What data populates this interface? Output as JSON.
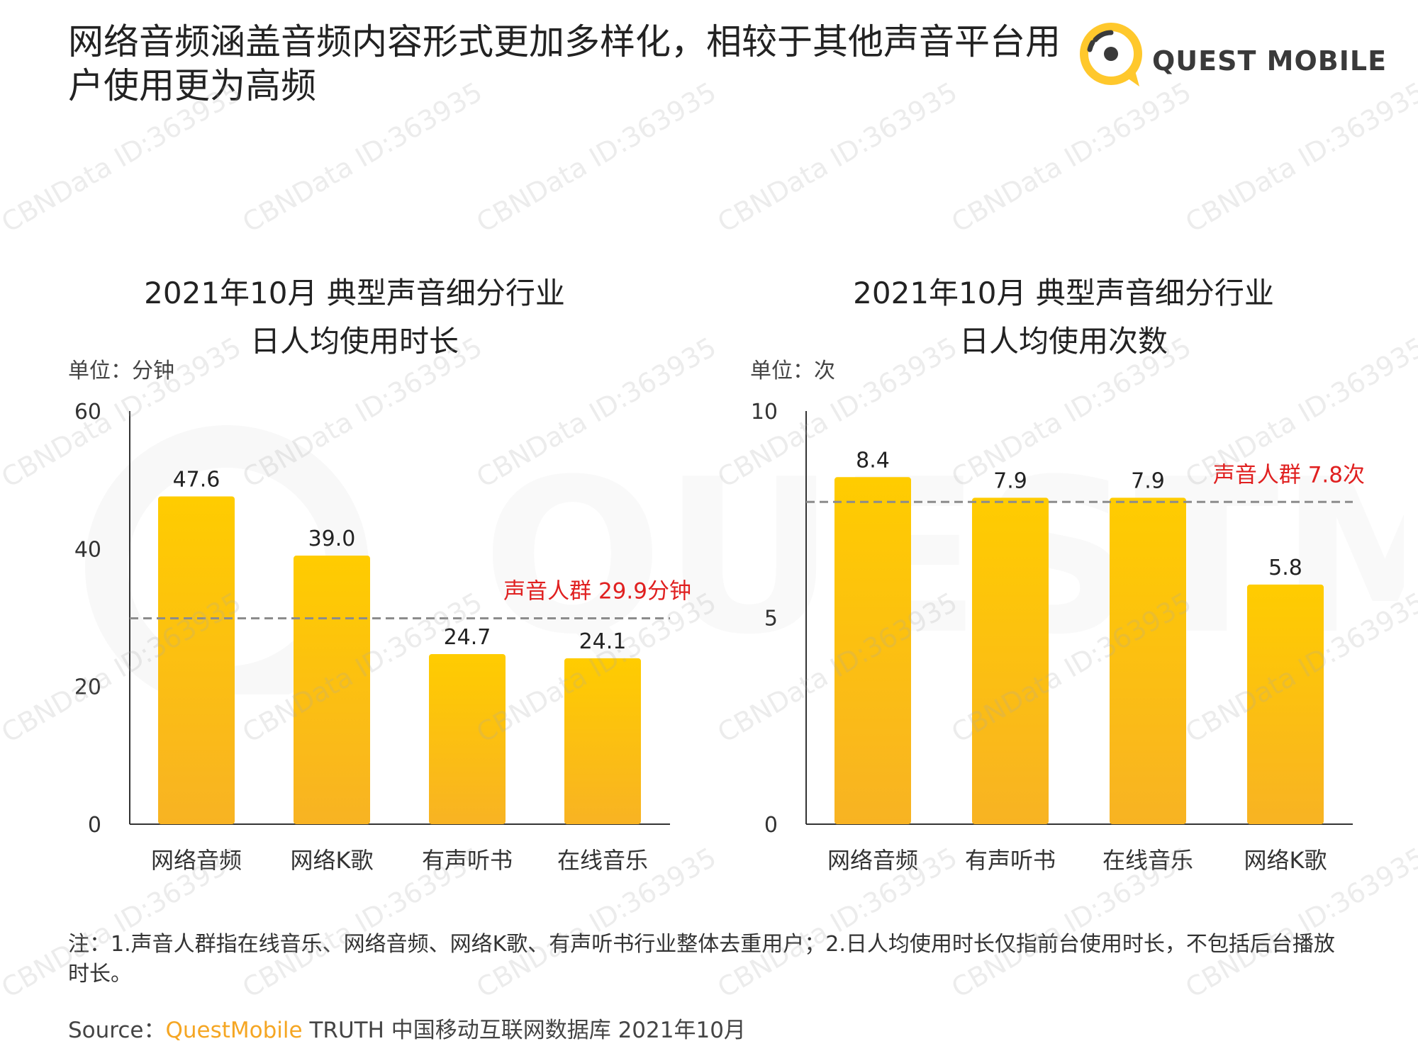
{
  "page": {
    "title": "网络音频涵盖音频内容形式更加多样化，相较于其他声音平台用户使用更为高频",
    "logo_text": "QUEST MOBILE",
    "note": "注：1.声音人群指在线音乐、网络音频、网络K歌、有声听书行业整体去重用户；2.日人均使用时长仅指前台使用时长，不包括后台播放时长。",
    "source_label": "Source：",
    "source_brand": "QuestMobile",
    "source_rest": " TRUTH 中国移动互联网数据库 2021年10月",
    "watermark_text": "CBNData ID:363935"
  },
  "colors": {
    "bar_top": "#ffcc00",
    "bar_bottom": "#f8b323",
    "ref_line": "#8c8c8c",
    "ref_label": "#e02020",
    "logo_yellow": "#ffc82c",
    "axis": "#333333"
  },
  "chart_data": [
    {
      "type": "bar",
      "title": [
        "2021年10月 典型声音细分行业",
        "日人均使用时长"
      ],
      "unit": "单位：分钟",
      "categories": [
        "网络音频",
        "网络K歌",
        "有声听书",
        "在线音乐"
      ],
      "values": [
        47.6,
        39.0,
        24.7,
        24.1
      ],
      "value_labels": [
        "47.6",
        "39.0",
        "24.7",
        "24.1"
      ],
      "ylim": [
        0,
        60
      ],
      "yticks": [
        0,
        20,
        40,
        60
      ],
      "reference": {
        "value": 29.9,
        "label": "声音人群 29.9分钟"
      }
    },
    {
      "type": "bar",
      "title": [
        "2021年10月 典型声音细分行业",
        "日人均使用次数"
      ],
      "unit": "单位：次",
      "categories": [
        "网络音频",
        "有声听书",
        "在线音乐",
        "网络K歌"
      ],
      "values": [
        8.4,
        7.9,
        7.9,
        5.8
      ],
      "value_labels": [
        "8.4",
        "7.9",
        "7.9",
        "5.8"
      ],
      "ylim": [
        0,
        10
      ],
      "yticks": [
        0,
        5,
        10
      ],
      "reference": {
        "value": 7.8,
        "label": "声音人群 7.8次"
      }
    }
  ]
}
